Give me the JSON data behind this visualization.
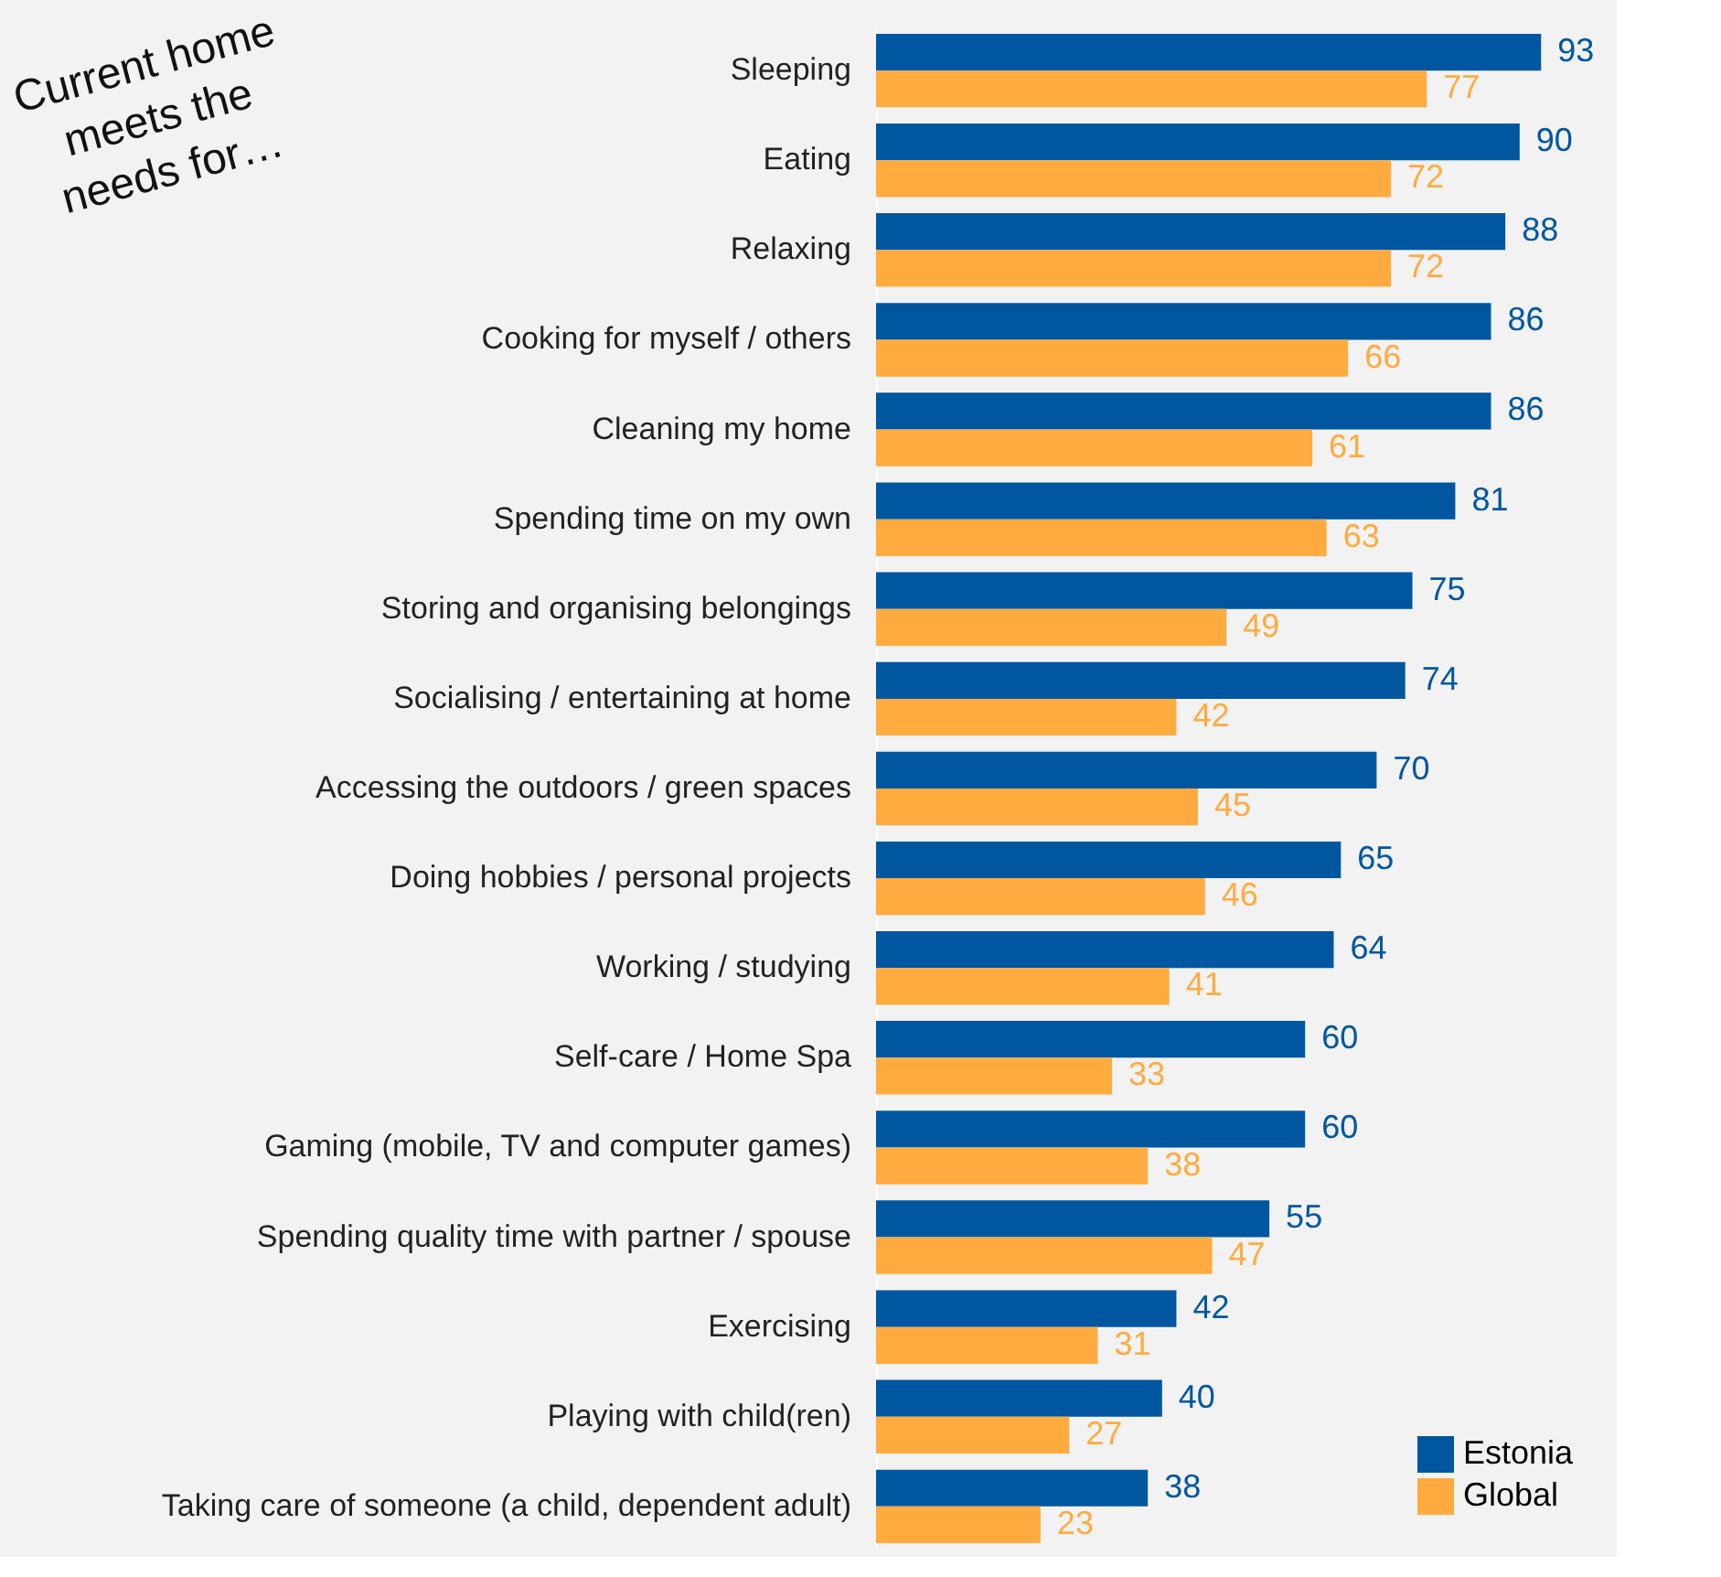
{
  "chart_data": {
    "type": "bar",
    "orientation": "horizontal",
    "annotations": [
      "Current home meets the needs for…"
    ],
    "categories": [
      "Sleeping",
      "Eating",
      "Relaxing",
      "Cooking for myself / others",
      "Cleaning my home",
      "Spending time on my own",
      "Storing and organising belongings",
      "Socialising / entertaining at home",
      "Accessing the outdoors / green spaces",
      "Doing hobbies / personal projects",
      "Working / studying",
      "Self-care / Home Spa",
      "Gaming (mobile, TV and computer games)",
      "Spending quality time with partner / spouse",
      "Exercising",
      "Playing with child(ren)",
      "Taking care of someone (a child, dependent adult)"
    ],
    "series": [
      {
        "name": "Estonia",
        "color": "#0057a0",
        "values": [
          93,
          90,
          88,
          86,
          86,
          81,
          75,
          74,
          70,
          65,
          64,
          60,
          60,
          55,
          42,
          40,
          38
        ]
      },
      {
        "name": "Global",
        "color": "#ffab40",
        "values": [
          77,
          72,
          72,
          66,
          61,
          63,
          49,
          42,
          45,
          46,
          41,
          33,
          38,
          47,
          31,
          27,
          23
        ]
      }
    ],
    "data_labels": true,
    "legend": "bottom right",
    "grid": false,
    "tick_labels": "y"
  }
}
